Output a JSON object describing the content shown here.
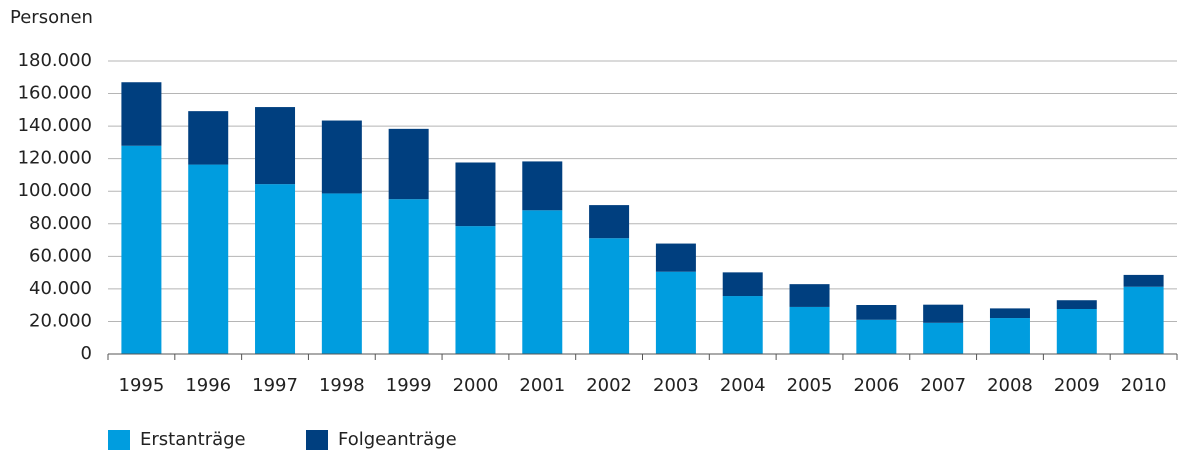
{
  "chart_data": {
    "type": "stacked_bar",
    "y_label": "Personen",
    "categories": [
      "1995",
      "1996",
      "1997",
      "1998",
      "1999",
      "2000",
      "2001",
      "2002",
      "2003",
      "2004",
      "2005",
      "2006",
      "2007",
      "2008",
      "2009",
      "2010"
    ],
    "series": [
      {
        "name": "Erstanträge",
        "color": "#009ddf",
        "values": [
          127937,
          116367,
          104353,
          98644,
          95113,
          78564,
          88287,
          71127,
          50563,
          35607,
          28914,
          21029,
          19164,
          22085,
          27649,
          41332
        ]
      },
      {
        "name": "Folgeanträge",
        "color": "#003f7f",
        "values": [
          39014,
          32826,
          47347,
          44785,
          43206,
          39084,
          30019,
          20344,
          17285,
          14545,
          13994,
          9071,
          11139,
          5933,
          5384,
          7257
        ]
      }
    ],
    "ylim": [
      0,
      180000
    ],
    "yticks": [
      0,
      {
        "value": 20000,
        "label": "20.000"
      },
      {
        "value": 40000,
        "label": "40.000"
      },
      {
        "value": 60000,
        "label": "60.000"
      },
      {
        "value": 80000,
        "label": "80.000"
      },
      {
        "value": 100000,
        "label": "100.000"
      },
      {
        "value": 120000,
        "label": "120.000"
      },
      {
        "value": 140000,
        "label": "140.000"
      },
      {
        "value": 160000,
        "label": "160.000"
      },
      {
        "value": 180000,
        "label": "180.000"
      }
    ],
    "grid": true,
    "legend": "bottom-left"
  }
}
